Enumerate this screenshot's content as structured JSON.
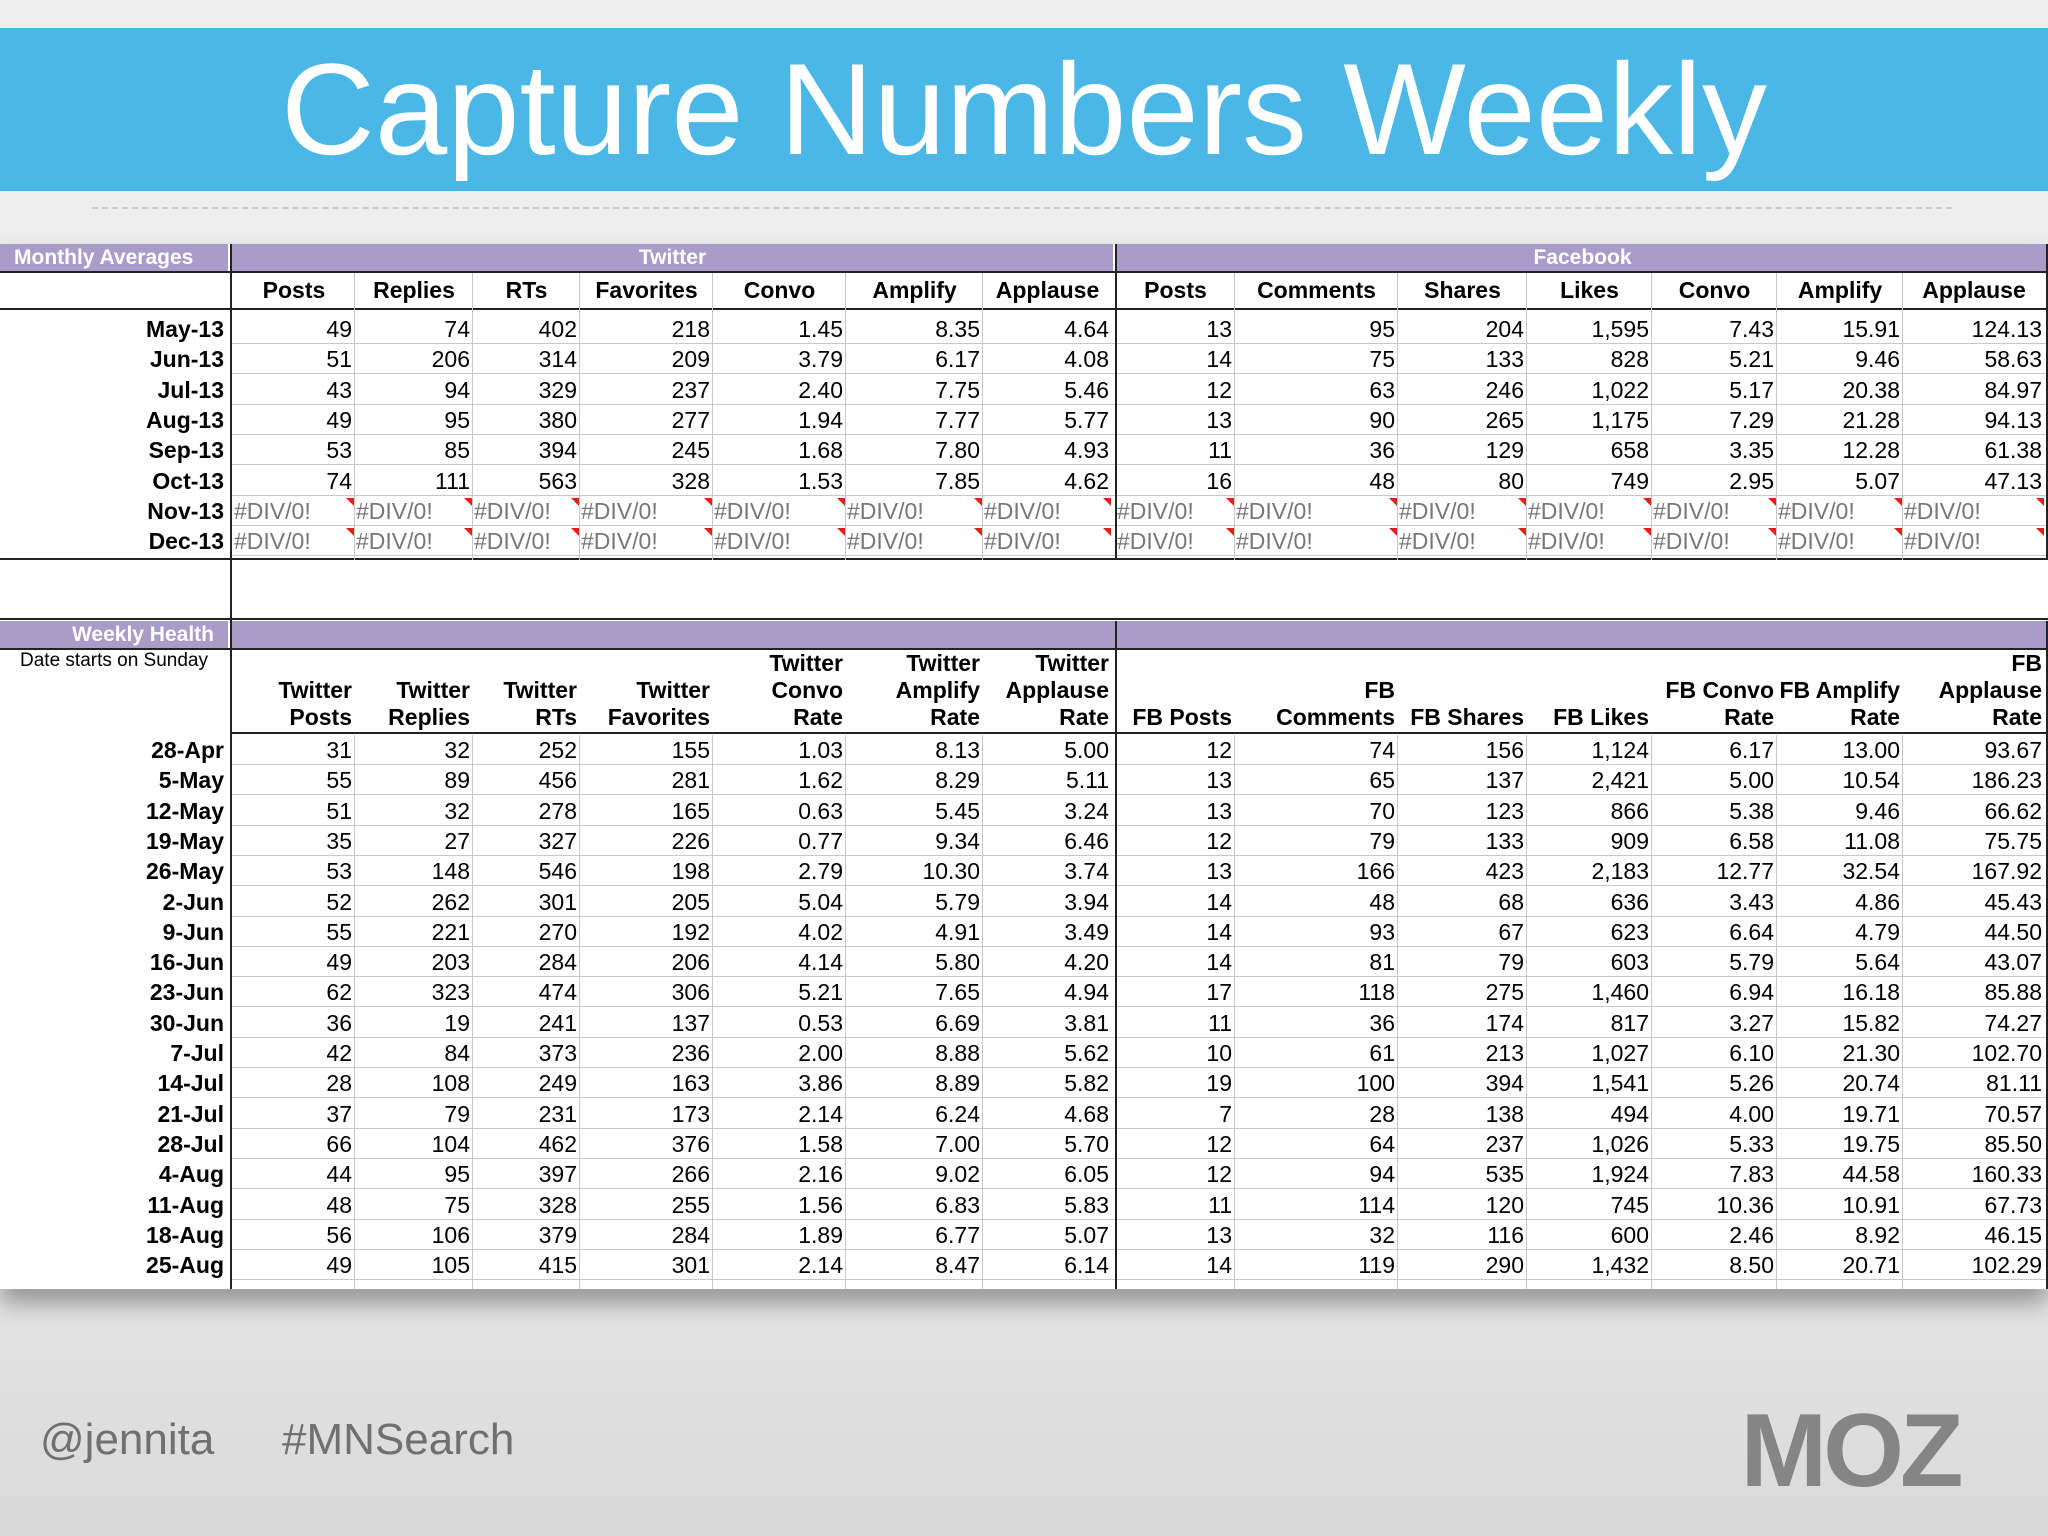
{
  "title": "Capture Numbers Weekly",
  "monthly": {
    "section_label": "Monthly Averages",
    "group_twitter": "Twitter",
    "group_facebook": "Facebook",
    "columns": [
      "Posts",
      "Replies",
      "RTs",
      "Favorites",
      "Convo",
      "Amplify",
      "Applause",
      "Posts",
      "Comments",
      "Shares",
      "Likes",
      "Convo",
      "Amplify",
      "Applause"
    ],
    "rows": [
      {
        "label": "May-13",
        "values": [
          "49",
          "74",
          "402",
          "218",
          "1.45",
          "8.35",
          "4.64",
          "13",
          "95",
          "204",
          "1,595",
          "7.43",
          "15.91",
          "124.13"
        ]
      },
      {
        "label": "Jun-13",
        "values": [
          "51",
          "206",
          "314",
          "209",
          "3.79",
          "6.17",
          "4.08",
          "14",
          "75",
          "133",
          "828",
          "5.21",
          "9.46",
          "58.63"
        ]
      },
      {
        "label": "Jul-13",
        "values": [
          "43",
          "94",
          "329",
          "237",
          "2.40",
          "7.75",
          "5.46",
          "12",
          "63",
          "246",
          "1,022",
          "5.17",
          "20.38",
          "84.97"
        ]
      },
      {
        "label": "Aug-13",
        "values": [
          "49",
          "95",
          "380",
          "277",
          "1.94",
          "7.77",
          "5.77",
          "13",
          "90",
          "265",
          "1,175",
          "7.29",
          "21.28",
          "94.13"
        ]
      },
      {
        "label": "Sep-13",
        "values": [
          "53",
          "85",
          "394",
          "245",
          "1.68",
          "7.80",
          "4.93",
          "11",
          "36",
          "129",
          "658",
          "3.35",
          "12.28",
          "61.38"
        ]
      },
      {
        "label": "Oct-13",
        "values": [
          "74",
          "111",
          "563",
          "328",
          "1.53",
          "7.85",
          "4.62",
          "16",
          "48",
          "80",
          "749",
          "2.95",
          "5.07",
          "47.13"
        ]
      },
      {
        "label": "Nov-13",
        "values": [
          "#DIV/0!",
          "#DIV/0!",
          "#DIV/0!",
          "#DIV/0!",
          "#DIV/0!",
          "#DIV/0!",
          "#DIV/0!",
          "#DIV/0!",
          "#DIV/0!",
          "#DIV/0!",
          "#DIV/0!",
          "#DIV/0!",
          "#DIV/0!",
          "#DIV/0!"
        ]
      },
      {
        "label": "Dec-13",
        "values": [
          "#DIV/0!",
          "#DIV/0!",
          "#DIV/0!",
          "#DIV/0!",
          "#DIV/0!",
          "#DIV/0!",
          "#DIV/0!",
          "#DIV/0!",
          "#DIV/0!",
          "#DIV/0!",
          "#DIV/0!",
          "#DIV/0!",
          "#DIV/0!",
          "#DIV/0!"
        ]
      }
    ]
  },
  "weekly": {
    "section_label": "Weekly Health",
    "note": "Date starts on Sunday",
    "columns": [
      [
        "",
        "Twitter",
        "Posts"
      ],
      [
        "",
        "Twitter",
        "Replies"
      ],
      [
        "",
        "Twitter",
        "RTs"
      ],
      [
        "",
        "Twitter",
        "Favorites"
      ],
      [
        "Twitter",
        "Convo",
        "Rate"
      ],
      [
        "Twitter",
        "Amplify",
        "Rate"
      ],
      [
        "Twitter",
        "Applause",
        "Rate"
      ],
      [
        "",
        "",
        "FB Posts"
      ],
      [
        "",
        "FB",
        "Comments"
      ],
      [
        "",
        "",
        "FB Shares"
      ],
      [
        "",
        "",
        "FB Likes"
      ],
      [
        "",
        "FB Convo",
        "Rate"
      ],
      [
        "",
        "FB Amplify",
        "Rate"
      ],
      [
        "FB",
        "Applause",
        "Rate"
      ]
    ],
    "rows": [
      {
        "label": "28-Apr",
        "values": [
          "31",
          "32",
          "252",
          "155",
          "1.03",
          "8.13",
          "5.00",
          "12",
          "74",
          "156",
          "1,124",
          "6.17",
          "13.00",
          "93.67"
        ]
      },
      {
        "label": "5-May",
        "values": [
          "55",
          "89",
          "456",
          "281",
          "1.62",
          "8.29",
          "5.11",
          "13",
          "65",
          "137",
          "2,421",
          "5.00",
          "10.54",
          "186.23"
        ]
      },
      {
        "label": "12-May",
        "values": [
          "51",
          "32",
          "278",
          "165",
          "0.63",
          "5.45",
          "3.24",
          "13",
          "70",
          "123",
          "866",
          "5.38",
          "9.46",
          "66.62"
        ]
      },
      {
        "label": "19-May",
        "values": [
          "35",
          "27",
          "327",
          "226",
          "0.77",
          "9.34",
          "6.46",
          "12",
          "79",
          "133",
          "909",
          "6.58",
          "11.08",
          "75.75"
        ]
      },
      {
        "label": "26-May",
        "values": [
          "53",
          "148",
          "546",
          "198",
          "2.79",
          "10.30",
          "3.74",
          "13",
          "166",
          "423",
          "2,183",
          "12.77",
          "32.54",
          "167.92"
        ]
      },
      {
        "label": "2-Jun",
        "values": [
          "52",
          "262",
          "301",
          "205",
          "5.04",
          "5.79",
          "3.94",
          "14",
          "48",
          "68",
          "636",
          "3.43",
          "4.86",
          "45.43"
        ]
      },
      {
        "label": "9-Jun",
        "values": [
          "55",
          "221",
          "270",
          "192",
          "4.02",
          "4.91",
          "3.49",
          "14",
          "93",
          "67",
          "623",
          "6.64",
          "4.79",
          "44.50"
        ]
      },
      {
        "label": "16-Jun",
        "values": [
          "49",
          "203",
          "284",
          "206",
          "4.14",
          "5.80",
          "4.20",
          "14",
          "81",
          "79",
          "603",
          "5.79",
          "5.64",
          "43.07"
        ]
      },
      {
        "label": "23-Jun",
        "values": [
          "62",
          "323",
          "474",
          "306",
          "5.21",
          "7.65",
          "4.94",
          "17",
          "118",
          "275",
          "1,460",
          "6.94",
          "16.18",
          "85.88"
        ]
      },
      {
        "label": "30-Jun",
        "values": [
          "36",
          "19",
          "241",
          "137",
          "0.53",
          "6.69",
          "3.81",
          "11",
          "36",
          "174",
          "817",
          "3.27",
          "15.82",
          "74.27"
        ]
      },
      {
        "label": "7-Jul",
        "values": [
          "42",
          "84",
          "373",
          "236",
          "2.00",
          "8.88",
          "5.62",
          "10",
          "61",
          "213",
          "1,027",
          "6.10",
          "21.30",
          "102.70"
        ]
      },
      {
        "label": "14-Jul",
        "values": [
          "28",
          "108",
          "249",
          "163",
          "3.86",
          "8.89",
          "5.82",
          "19",
          "100",
          "394",
          "1,541",
          "5.26",
          "20.74",
          "81.11"
        ]
      },
      {
        "label": "21-Jul",
        "values": [
          "37",
          "79",
          "231",
          "173",
          "2.14",
          "6.24",
          "4.68",
          "7",
          "28",
          "138",
          "494",
          "4.00",
          "19.71",
          "70.57"
        ]
      },
      {
        "label": "28-Jul",
        "values": [
          "66",
          "104",
          "462",
          "376",
          "1.58",
          "7.00",
          "5.70",
          "12",
          "64",
          "237",
          "1,026",
          "5.33",
          "19.75",
          "85.50"
        ]
      },
      {
        "label": "4-Aug",
        "values": [
          "44",
          "95",
          "397",
          "266",
          "2.16",
          "9.02",
          "6.05",
          "12",
          "94",
          "535",
          "1,924",
          "7.83",
          "44.58",
          "160.33"
        ]
      },
      {
        "label": "11-Aug",
        "values": [
          "48",
          "75",
          "328",
          "255",
          "1.56",
          "6.83",
          "5.83",
          "11",
          "114",
          "120",
          "745",
          "10.36",
          "10.91",
          "67.73"
        ]
      },
      {
        "label": "18-Aug",
        "values": [
          "56",
          "106",
          "379",
          "284",
          "1.89",
          "6.77",
          "5.07",
          "13",
          "32",
          "116",
          "600",
          "2.46",
          "8.92",
          "46.15"
        ]
      },
      {
        "label": "25-Aug",
        "values": [
          "49",
          "105",
          "415",
          "301",
          "2.14",
          "8.47",
          "6.14",
          "14",
          "119",
          "290",
          "1,432",
          "8.50",
          "20.71",
          "102.29"
        ]
      }
    ]
  },
  "footer": {
    "handle": "@jennita",
    "hashtag": "#MNSearch",
    "logo_text": "MOZ"
  }
}
